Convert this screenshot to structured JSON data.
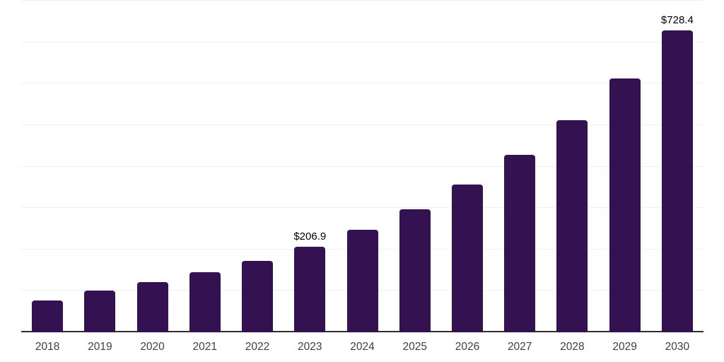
{
  "chart_data": {
    "type": "bar",
    "title": "",
    "xlabel": "",
    "ylabel": "",
    "categories": [
      "2018",
      "2019",
      "2020",
      "2021",
      "2022",
      "2023",
      "2024",
      "2025",
      "2026",
      "2027",
      "2028",
      "2029",
      "2030"
    ],
    "values": [
      76.8,
      100.6,
      121.1,
      145.0,
      172.3,
      206.9,
      247.4,
      296.8,
      356.5,
      428.1,
      511.7,
      612.3,
      728.4
    ],
    "labeled_points": [
      {
        "category": "2023",
        "label": "$206.9"
      },
      {
        "category": "2030",
        "label": "$728.4"
      }
    ],
    "ylim": [
      0,
      800
    ],
    "grid_step": 100,
    "grid": "horizontal gridlines, no y-axis tick labels",
    "legend_position": "none",
    "colors": {
      "bar": "#341151",
      "axis_line": "#2f2f2f",
      "gridline": "#f1f1f1",
      "tick_label": "#404040",
      "data_label": "#000000",
      "background": "#ffffff"
    }
  }
}
